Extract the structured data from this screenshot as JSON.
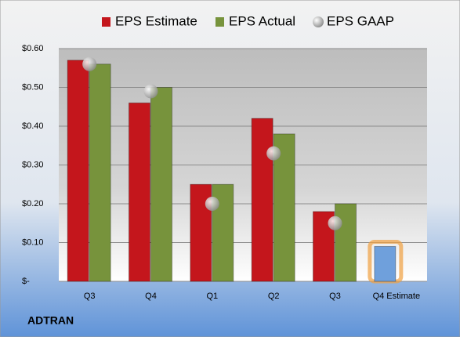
{
  "chart_data": {
    "type": "bar",
    "title": "ADTRAN",
    "categories": [
      "Q3",
      "Q4",
      "Q1",
      "Q2",
      "Q3",
      "Q4 Estimate"
    ],
    "series": [
      {
        "name": "EPS Estimate",
        "color": "#c4161c",
        "values": [
          0.57,
          0.46,
          0.25,
          0.42,
          0.18,
          0.09
        ]
      },
      {
        "name": "EPS Actual",
        "color": "#77933c",
        "values": [
          0.56,
          0.5,
          0.25,
          0.38,
          0.2,
          null
        ]
      },
      {
        "name": "EPS GAAP",
        "color": "#a6a6a6",
        "marker": "bubble",
        "values": [
          0.56,
          0.49,
          0.2,
          0.33,
          0.15,
          null
        ]
      }
    ],
    "highlight": {
      "index": 5,
      "color": "#6fa0dc",
      "glow": "#f0a040"
    },
    "ylim": [
      0,
      0.6
    ],
    "yticks": [
      {
        "value": 0,
        "label": "$-"
      },
      {
        "value": 0.1,
        "label": "$0.10"
      },
      {
        "value": 0.2,
        "label": "$0.20"
      },
      {
        "value": 0.3,
        "label": "$0.30"
      },
      {
        "value": 0.4,
        "label": "$0.40"
      },
      {
        "value": 0.5,
        "label": "$0.50"
      },
      {
        "value": 0.6,
        "label": "$0.60"
      }
    ],
    "grid": true,
    "legend": "top"
  }
}
